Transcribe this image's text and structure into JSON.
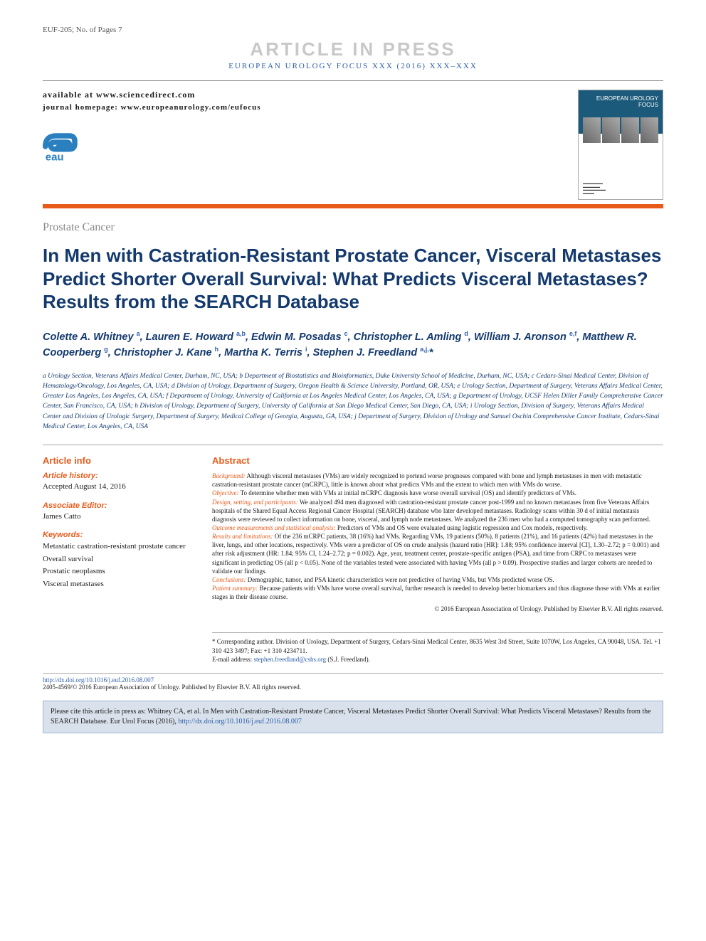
{
  "header": {
    "article_ref": "EUF-205; No. of Pages 7",
    "in_press": "ARTICLE IN PRESS",
    "journal_line": "EUROPEAN UROLOGY FOCUS XXX (2016) XXX–XXX",
    "available_at": "available at www.sciencedirect.com",
    "homepage": "journal homepage: www.europeanurology.com/eufocus",
    "cover_title": "EUROPEAN UROLOGY FOCUS"
  },
  "section_label": "Prostate Cancer",
  "title": "In Men with Castration-Resistant Prostate Cancer, Visceral Metastases Predict Shorter Overall Survival: What Predicts Visceral Metastases? Results from the SEARCH Database",
  "authors_html": "Colette A. Whitney <sup>a</sup>, Lauren E. Howard <sup>a,b</sup>, Edwin M. Posadas <sup>c</sup>, Christopher L. Amling <sup>d</sup>, William J. Aronson <sup>e,f</sup>, Matthew R. Cooperberg <sup>g</sup>, Christopher J. Kane <sup>h</sup>, Martha K. Terris <sup>i</sup>, Stephen J. Freedland <sup>a,j,</sup>*",
  "affiliations": "a Urology Section, Veterans Affairs Medical Center, Durham, NC, USA; b Department of Biostatistics and Bioinformatics, Duke University School of Medicine, Durham, NC, USA; c Cedars-Sinai Medical Center, Division of Hematology/Oncology, Los Angeles, CA, USA; d Division of Urology, Department of Surgery, Oregon Health & Science University, Portland, OR, USA; e Urology Section, Department of Surgery, Veterans Affairs Medical Center, Greater Los Angeles, Los Angeles, CA, USA; f Department of Urology, University of California at Los Angeles Medical Center, Los Angeles, CA, USA; g Department of Urology, UCSF Helen Diller Family Comprehensive Cancer Center, San Francisco, CA, USA; h Division of Urology, Department of Surgery, University of California at San Diego Medical Center, San Diego, CA, USA; i Urology Section, Division of Surgery, Veterans Affairs Medical Center and Division of Urologic Surgery, Department of Surgery, Medical College of Georgia, Augusta, GA, USA; j Department of Surgery, Division of Urology and Samuel Oschin Comprehensive Cancer Institute, Cedars-Sinai Medical Center, Los Angeles, CA, USA",
  "article_info": {
    "heading": "Article info",
    "history_label": "Article history:",
    "history_text": "Accepted August 14, 2016",
    "editor_label": "Associate Editor:",
    "editor_name": "James Catto",
    "keywords_label": "Keywords:",
    "keywords": [
      "Metastatic castration-resistant prostate cancer",
      "Overall survival",
      "Prostatic neoplasms",
      "Visceral metastases"
    ]
  },
  "abstract": {
    "heading": "Abstract",
    "sections": [
      {
        "label": "Background:",
        "text": " Although visceral metastases (VMs) are widely recognized to portend worse prognoses compared with bone and lymph metastases in men with metastatic castration-resistant prostate cancer (mCRPC), little is known about what predicts VMs and the extent to which men with VMs do worse."
      },
      {
        "label": "Objective:",
        "text": " To determine whether men with VMs at initial mCRPC diagnosis have worse overall survival (OS) and identify predictors of VMs."
      },
      {
        "label": "Design, setting, and participants:",
        "text": " We analyzed 494 men diagnosed with castration-resistant prostate cancer post-1999 and no known metastases from five Veterans Affairs hospitals of the Shared Equal Access Regional Cancer Hospital (SEARCH) database who later developed metastases. Radiology scans within 30 d of initial metastasis diagnosis were reviewed to collect information on bone, visceral, and lymph node metastases. We analyzed the 236 men who had a computed tomography scan performed."
      },
      {
        "label": "Outcome measurements and statistical analysis:",
        "text": " Predictors of VMs and OS were evaluated using logistic regression and Cox models, respectively."
      },
      {
        "label": "Results and limitations:",
        "text": " Of the 236 mCRPC patients, 38 (16%) had VMs. Regarding VMs, 19 patients (50%), 8 patients (21%), and 16 patients (42%) had metastases in the liver, lungs, and other locations, respectively. VMs were a predictor of OS on crude analysis (hazard ratio [HR]: 1.88; 95% confidence interval [CI], 1.30–2.72; p = 0.001) and after risk adjustment (HR: 1.84; 95% CI, 1.24–2.72; p = 0.002). Age, year, treatment center, prostate-specific antigen (PSA), and time from CRPC to metastases were significant in predicting OS (all p < 0.05). None of the variables tested were associated with having VMs (all p > 0.09). Prospective studies and larger cohorts are needed to validate our findings."
      },
      {
        "label": "Conclusions:",
        "text": " Demographic, tumor, and PSA kinetic characteristics were not predictive of having VMs, but VMs predicted worse OS."
      },
      {
        "label": "Patient summary:",
        "text": " Because patients with VMs have worse overall survival, further research is needed to develop better biomarkers and thus diagnose those with VMs at earlier stages in their disease course."
      }
    ],
    "copyright": "© 2016 European Association of Urology. Published by Elsevier B.V. All rights reserved."
  },
  "corresp": {
    "text": "* Corresponding author. Division of Urology, Department of Surgery, Cedars-Sinai Medical Center, 8635 West 3rd Street, Suite 1070W, Los Angeles, CA 90048, USA. Tel. +1 310 423 3497; Fax: +1 310 4234711.",
    "email_label": "E-mail address: ",
    "email": "stephen.freedland@cshs.org",
    "email_name": " (S.J. Freedland)."
  },
  "footer": {
    "doi": "http://dx.doi.org/10.1016/j.euf.2016.08.007",
    "issn": "2405-4569/© 2016 European Association of Urology. Published by Elsevier B.V. All rights reserved.",
    "cite_text": "Please cite this article in press as: Whitney CA, et al. In Men with Castration-Resistant Prostate Cancer, Visceral Metastases Predict Shorter Overall Survival: What Predicts Visceral Metastases? Results from the SEARCH Database. Eur Urol Focus (2016), ",
    "cite_doi": "http://dx.doi.org/10.1016/j.euf.2016.08.007"
  },
  "colors": {
    "orange": "#e85a1a",
    "navy": "#13396d",
    "link_blue": "#2a5ca8",
    "cite_bg": "#d9e2ec"
  }
}
